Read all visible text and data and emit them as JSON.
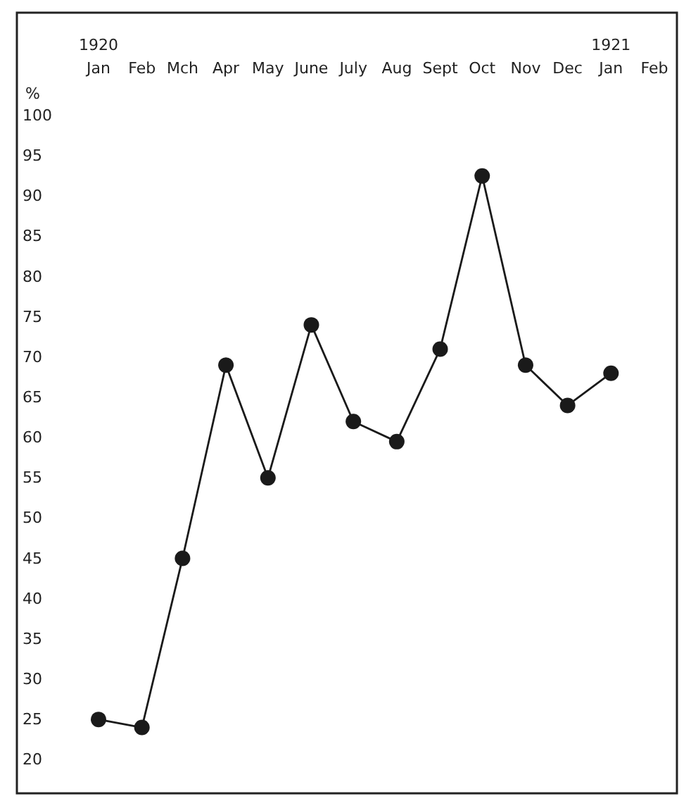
{
  "chart_data": {
    "type": "line",
    "ylabel": "%",
    "x": [
      "1920-01",
      "1920-02",
      "1920-03",
      "1920-04",
      "1920-05",
      "1920-06",
      "1920-07",
      "1920-08",
      "1920-09",
      "1920-10",
      "1920-11",
      "1920-12",
      "1921-01"
    ],
    "series": [
      {
        "color": "#1a1a1a",
        "values": [
          25,
          24,
          45,
          69,
          55,
          74,
          62,
          59.5,
          71,
          92.5,
          69,
          64,
          68
        ]
      }
    ],
    "xlim": [
      "1920-01",
      "1921-02"
    ],
    "xticks": [
      {
        "value": "1920-01",
        "label": "1920\nJan"
      },
      {
        "value": "1920-02",
        "label": "Feb"
      },
      {
        "value": "1920-03",
        "label": "Mch"
      },
      {
        "value": "1920-04",
        "label": "Apr"
      },
      {
        "value": "1920-05",
        "label": "May"
      },
      {
        "value": "1920-06",
        "label": "June"
      },
      {
        "value": "1920-07",
        "label": "July"
      },
      {
        "value": "1920-08",
        "label": "Aug"
      },
      {
        "value": "1920-09",
        "label": "Sept"
      },
      {
        "value": "1920-10",
        "label": "Oct"
      },
      {
        "value": "1920-11",
        "label": "Nov"
      },
      {
        "value": "1920-12",
        "label": "Dec"
      },
      {
        "value": "1921-01",
        "label": "1921\nJan"
      },
      {
        "value": "1921-02",
        "label": "Feb"
      }
    ],
    "ylim": [
      16,
      100
    ],
    "yticks": [
      20,
      25,
      30,
      35,
      40,
      45,
      50,
      55,
      60,
      65,
      70,
      75,
      80,
      85,
      90,
      95,
      100
    ],
    "marker": "circle",
    "line_style": "solid",
    "grid": false
  }
}
